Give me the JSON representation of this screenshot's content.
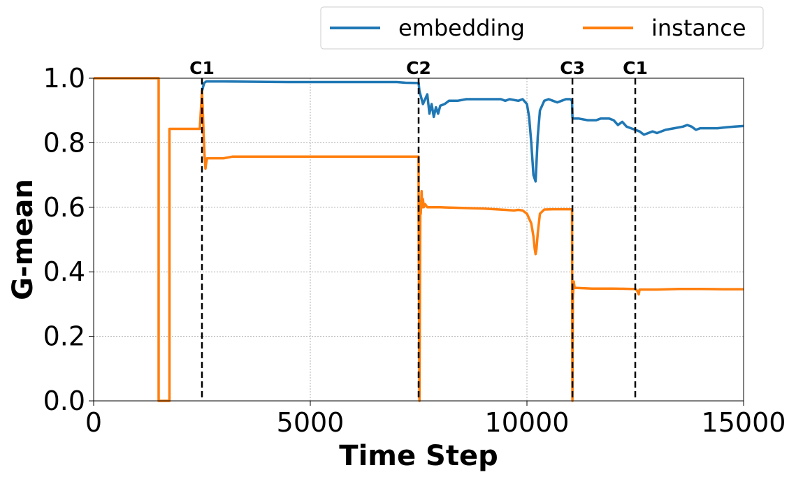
{
  "chart_data": {
    "type": "line",
    "title": "",
    "xlabel": "Time Step",
    "ylabel": "G-mean",
    "xlim": [
      0,
      15000
    ],
    "ylim": [
      0,
      1.0
    ],
    "xticks": [
      0,
      5000,
      10000,
      15000
    ],
    "yticks": [
      0.0,
      0.2,
      0.4,
      0.6,
      0.8,
      1.0
    ],
    "xtick_labels": [
      "0",
      "5000",
      "10000",
      "15000"
    ],
    "ytick_labels": [
      "0.0",
      "0.2",
      "0.4",
      "0.6",
      "0.8",
      "1.0"
    ],
    "grid": true,
    "legend_position": "top-right, above plot",
    "drift_markers": [
      {
        "x": 2500,
        "label": "C1"
      },
      {
        "x": 7500,
        "label": "C2"
      },
      {
        "x": 11050,
        "label": "C3"
      },
      {
        "x": 12500,
        "label": "C1"
      }
    ],
    "series": [
      {
        "name": "embedding",
        "color": "#1f77b4",
        "x": [
          2500,
          2550,
          2600,
          3000,
          4500,
          6000,
          7000,
          7200,
          7500,
          7520,
          7600,
          7700,
          7750,
          7800,
          7850,
          7900,
          7950,
          8000,
          8100,
          8200,
          8400,
          8600,
          9000,
          9400,
          9500,
          9600,
          9800,
          9900,
          10000,
          10050,
          10100,
          10150,
          10200,
          10250,
          10300,
          10400,
          10500,
          10600,
          10700,
          10800,
          10900,
          11000,
          11040,
          11050,
          11060,
          11200,
          11400,
          11600,
          11700,
          11900,
          12000,
          12100,
          12200,
          12300,
          12400,
          12500,
          12600,
          12700,
          12800,
          12900,
          13000,
          13200,
          13400,
          13600,
          13700,
          13800,
          13900,
          14000,
          14200,
          14400,
          14600,
          14800,
          15000
        ],
        "y": [
          0.96,
          0.985,
          0.99,
          0.99,
          0.988,
          0.988,
          0.988,
          0.986,
          0.985,
          0.96,
          0.92,
          0.95,
          0.89,
          0.92,
          0.88,
          0.91,
          0.89,
          0.915,
          0.92,
          0.93,
          0.93,
          0.935,
          0.935,
          0.935,
          0.93,
          0.935,
          0.93,
          0.935,
          0.92,
          0.88,
          0.8,
          0.7,
          0.68,
          0.82,
          0.9,
          0.93,
          0.935,
          0.93,
          0.925,
          0.93,
          0.935,
          0.935,
          0.93,
          0.88,
          0.875,
          0.875,
          0.87,
          0.87,
          0.875,
          0.875,
          0.87,
          0.855,
          0.865,
          0.85,
          0.845,
          0.84,
          0.835,
          0.825,
          0.83,
          0.835,
          0.83,
          0.84,
          0.845,
          0.85,
          0.855,
          0.85,
          0.84,
          0.845,
          0.845,
          0.845,
          0.848,
          0.85,
          0.852
        ]
      },
      {
        "name": "instance",
        "color": "#ff7f0e",
        "x": [
          0,
          1500,
          1500,
          1750,
          1750,
          2450,
          2500,
          2520,
          2540,
          2560,
          2580,
          2600,
          2620,
          2650,
          2700,
          2900,
          3000,
          3200,
          3250,
          4500,
          7500,
          7500,
          7520,
          7540,
          7550,
          7570,
          7580,
          7600,
          7620,
          7650,
          7700,
          7800,
          8000,
          9000,
          9500,
          9700,
          9800,
          9900,
          10000,
          10100,
          10150,
          10180,
          10200,
          10220,
          10250,
          10300,
          10400,
          10600,
          10800,
          11040,
          11050,
          11060,
          11080,
          11100,
          11150,
          11500,
          12000,
          12400,
          12500,
          12550,
          12580,
          12600,
          12700,
          13000,
          13500,
          14000,
          14500,
          15000
        ],
        "y": [
          1.0,
          1.0,
          0.0,
          0.0,
          0.843,
          0.843,
          0.96,
          0.9,
          0.82,
          0.76,
          0.72,
          0.74,
          0.752,
          0.752,
          0.752,
          0.752,
          0.752,
          0.757,
          0.757,
          0.757,
          0.757,
          0.6,
          0.0,
          0.62,
          0.58,
          0.65,
          0.6,
          0.625,
          0.6,
          0.61,
          0.6,
          0.6,
          0.6,
          0.596,
          0.592,
          0.59,
          0.592,
          0.59,
          0.58,
          0.55,
          0.51,
          0.47,
          0.455,
          0.47,
          0.52,
          0.58,
          0.593,
          0.594,
          0.594,
          0.594,
          0.0,
          0.32,
          0.37,
          0.35,
          0.35,
          0.348,
          0.348,
          0.347,
          0.347,
          0.34,
          0.33,
          0.345,
          0.345,
          0.345,
          0.347,
          0.347,
          0.346,
          0.346
        ]
      }
    ]
  }
}
